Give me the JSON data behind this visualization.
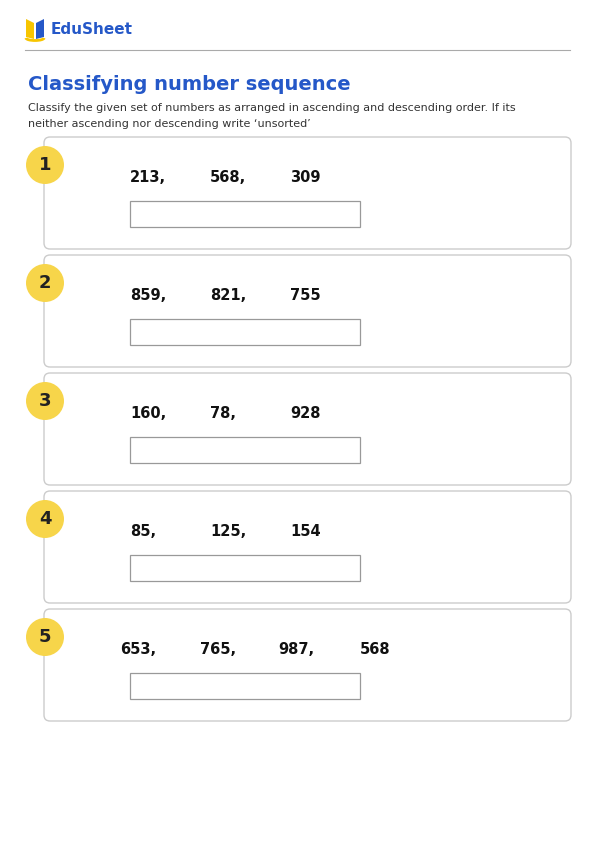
{
  "title": "Classifying number sequence",
  "instruction": "Classify the given set of numbers as arranged in ascending and descending order. If its\nneither ascending nor descending write ‘unsorted’",
  "logo_text": "EduSheet",
  "questions": [
    {
      "num": "1",
      "numbers": [
        "213,",
        "568,",
        "309"
      ]
    },
    {
      "num": "2",
      "numbers": [
        "859,",
        "821,",
        "755"
      ]
    },
    {
      "num": "3",
      "numbers": [
        "160,",
        "78,",
        "928"
      ]
    },
    {
      "num": "4",
      "numbers": [
        "85,",
        "125,",
        "154"
      ]
    },
    {
      "num": "5",
      "numbers": [
        "653,",
        "765,",
        "987,",
        "568"
      ]
    }
  ],
  "bg_color": "#ffffff",
  "title_color": "#2558C8",
  "instruction_color": "#333333",
  "logo_color": "#2558C8",
  "circle_fill": "#F7D54A",
  "box_edge_color": "#cccccc",
  "box_fill": "#ffffff",
  "answer_box_edge": "#999999",
  "answer_box_fill": "#ffffff",
  "sep_line_color": "#aaaaaa",
  "num_color": "#222222",
  "seq_color": "#111111"
}
